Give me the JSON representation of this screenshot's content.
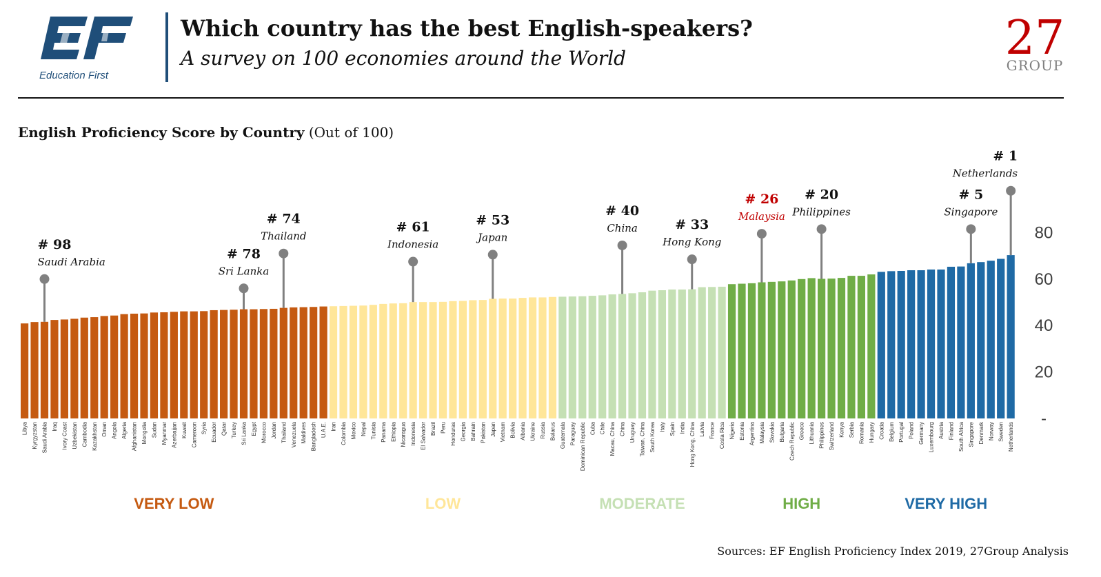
{
  "header": {
    "title": "Which country has the best English-speakers?",
    "subtitle": "A survey on 100 economies around the World",
    "ef_logo_text": "Education First",
    "brand_27_number": "27",
    "brand_27_word": "GROUP"
  },
  "chart_title_bold": "English Proficiency Score by Country",
  "chart_title_rest": "(Out of 100)",
  "source": "Sources: EF English Proficiency Index 2019, 27Group Analysis",
  "colors": {
    "very_low": "#c55a11",
    "low": "#ffe699",
    "moderate": "#c5e0b4",
    "high": "#70ad47",
    "very_high": "#1f6aa5",
    "callout_line": "#808080",
    "highlight": "#c00000",
    "logo_blue": "#1f4e79"
  },
  "chart_data": {
    "type": "bar",
    "ylim": [
      0,
      100
    ],
    "yticks": [
      0,
      20,
      40,
      60,
      80
    ],
    "ytick_labels": [
      "-",
      "20",
      "40",
      "60",
      "80"
    ],
    "categories": [
      "Libya",
      "Kyrgyzstan",
      "Saudi Arabia",
      "Iraq",
      "Ivory Coast",
      "Uzbekistan",
      "Cambodia",
      "Kazakhstan",
      "Oman",
      "Angola",
      "Algeria",
      "Afghanistan",
      "Mongolia",
      "Sudan",
      "Myanmar",
      "Azerbaijan",
      "Kuwait",
      "Cameroon",
      "Syria",
      "Ecuador",
      "Qatar",
      "Turkey",
      "Sri Lanka",
      "Egypt",
      "Morocco",
      "Jordan",
      "Thailand",
      "Venezuela",
      "Maldives",
      "Bangladesh",
      "U.A.E.",
      "Iran",
      "Colombia",
      "Mexico",
      "Nepal",
      "Tunisia",
      "Panama",
      "Ethiopia",
      "Nicaragua",
      "Indonesia",
      "El Salvador",
      "Brazil",
      "Peru",
      "Honduras",
      "Georgia",
      "Bahrain",
      "Pakistan",
      "Japan",
      "Vietnam",
      "Bolivia",
      "Albania",
      "Ukraine",
      "Russia",
      "Belarus",
      "Guatemala",
      "Paraguay",
      "Dominican Republic",
      "Cuba",
      "Chile",
      "Macau, China",
      "China",
      "Uruguay",
      "Taiwan, China",
      "South Korea",
      "Italy",
      "Spain",
      "India",
      "Hong Kong, China",
      "Latvia",
      "France",
      "Costa Rica",
      "Nigeria",
      "Estonia",
      "Argentina",
      "Malaysia",
      "Slovakia",
      "Bulgaria",
      "Czech Republic",
      "Greece",
      "Lithuania",
      "Philippines",
      "Switzerland",
      "Kenya",
      "Serbia",
      "Romania",
      "Hungary",
      "Croatia",
      "Belgium",
      "Portugal",
      "Poland",
      "Germany",
      "Luxembourg",
      "Austria",
      "Finland",
      "South Africa",
      "Singapore",
      "Denmark",
      "Norway",
      "Sweden",
      "Netherlands"
    ],
    "values": [
      40.9,
      41.5,
      41.6,
      42.4,
      42.6,
      42.9,
      43.4,
      43.6,
      44.1,
      44.3,
      44.9,
      45.1,
      45.2,
      45.6,
      45.7,
      45.9,
      46.1,
      46.1,
      46.2,
      46.6,
      46.7,
      46.8,
      47.0,
      47.0,
      47.1,
      47.2,
      47.6,
      47.8,
      47.9,
      48.0,
      48.2,
      48.3,
      48.4,
      48.5,
      48.6,
      48.9,
      49.3,
      49.5,
      49.6,
      50.1,
      50.1,
      50.1,
      50.2,
      50.5,
      50.6,
      50.9,
      51.0,
      51.5,
      51.6,
      51.6,
      51.9,
      52.1,
      52.1,
      52.3,
      52.4,
      52.5,
      52.6,
      52.8,
      53.0,
      53.4,
      53.6,
      53.9,
      54.3,
      55.0,
      55.2,
      55.5,
      55.5,
      55.6,
      56.5,
      56.6,
      56.7,
      57.8,
      58.0,
      58.2,
      58.6,
      58.8,
      59.0,
      59.4,
      60.0,
      60.4,
      60.1,
      60.2,
      60.5,
      61.4,
      61.4,
      62.0,
      63.1,
      63.4,
      63.5,
      63.8,
      63.8,
      64.1,
      64.1,
      65.3,
      65.4,
      66.8,
      67.3,
      67.9,
      68.7,
      70.3
    ],
    "bands": [
      {
        "label": "VERY LOW",
        "start": 0,
        "end": 30,
        "color": "#c55a11"
      },
      {
        "label": "LOW",
        "start": 31,
        "end": 53,
        "color": "#ffe699"
      },
      {
        "label": "MODERATE",
        "start": 54,
        "end": 70,
        "color": "#c5e0b4"
      },
      {
        "label": "HIGH",
        "start": 71,
        "end": 85,
        "color": "#70ad47"
      },
      {
        "label": "VERY HIGH",
        "start": 86,
        "end": 99,
        "color": "#1f6aa5"
      }
    ],
    "callouts": [
      {
        "country": "Saudi Arabia",
        "index": 2,
        "rank": "# 98",
        "name": "Saudi Arabia",
        "tip": 60,
        "highlight": false
      },
      {
        "country": "Sri Lanka",
        "index": 22,
        "rank": "# 78",
        "name": "Sri Lanka",
        "tip": 56,
        "highlight": false
      },
      {
        "country": "Thailand",
        "index": 26,
        "rank": "# 74",
        "name": "Thailand",
        "tip": 71,
        "highlight": false
      },
      {
        "country": "Indonesia",
        "index": 39,
        "rank": "# 61",
        "name": "Indonesia",
        "tip": 67.5,
        "highlight": false
      },
      {
        "country": "Japan",
        "index": 47,
        "rank": "# 53",
        "name": "Japan",
        "tip": 70.5,
        "highlight": false
      },
      {
        "country": "China",
        "index": 60,
        "rank": "# 40",
        "name": "China",
        "tip": 74.5,
        "highlight": false
      },
      {
        "country": "Hong Kong",
        "index": 67,
        "rank": "# 33",
        "name": "Hong Kong",
        "tip": 68.5,
        "highlight": false
      },
      {
        "country": "Malaysia",
        "index": 74,
        "rank": "# 26",
        "name": "Malaysia",
        "tip": 79.5,
        "highlight": true
      },
      {
        "country": "Philippines",
        "index": 80,
        "rank": "# 20",
        "name": "Philippines",
        "tip": 81.5,
        "highlight": false
      },
      {
        "country": "Singapore",
        "index": 95,
        "rank": "# 5",
        "name": "Singapore",
        "tip": 81.5,
        "highlight": false
      },
      {
        "country": "Netherlands",
        "index": 99,
        "rank": "# 1",
        "name": "Netherlands",
        "tip": 98,
        "highlight": false
      }
    ]
  }
}
